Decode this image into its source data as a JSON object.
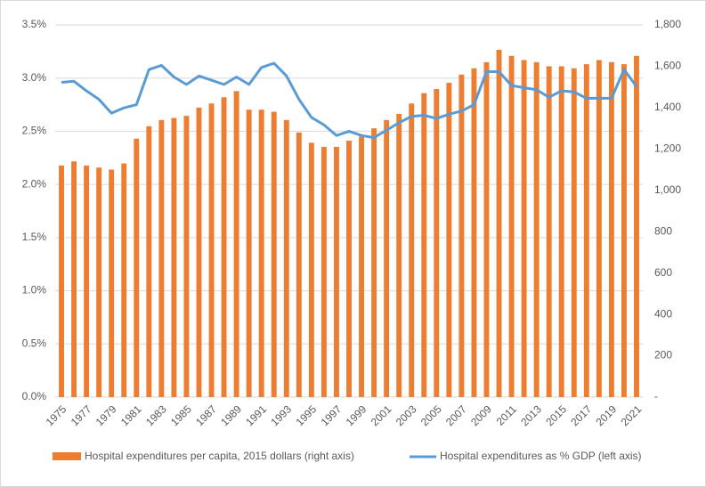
{
  "chart_data": {
    "type": "bar",
    "categories": [
      "1975",
      null,
      "1977",
      null,
      "1979",
      null,
      "1981",
      null,
      "1983",
      null,
      "1985",
      null,
      "1987",
      null,
      "1989",
      null,
      "1991",
      null,
      "1993",
      null,
      "1995",
      null,
      "1997",
      null,
      "1999",
      null,
      "2001",
      null,
      "2003",
      null,
      "2005",
      null,
      "2007",
      null,
      "2009",
      null,
      "2011",
      null,
      "2013",
      null,
      "2015",
      null,
      "2017",
      null,
      "2019",
      null,
      "2021"
    ],
    "series": [
      {
        "name": "Hospital expenditures per capita, 2015 dollars (right axis)",
        "type": "bar",
        "axis": "y2",
        "color": "#ed7d31",
        "values": [
          1120,
          1140,
          1120,
          1110,
          1100,
          1130,
          1250,
          1310,
          1340,
          1350,
          1360,
          1400,
          1420,
          1450,
          1480,
          1390,
          1390,
          1380,
          1340,
          1280,
          1230,
          1210,
          1210,
          1240,
          1260,
          1300,
          1340,
          1370,
          1420,
          1470,
          1490,
          1520,
          1560,
          1590,
          1620,
          1680,
          1650,
          1630,
          1620,
          1600,
          1600,
          1590,
          1610,
          1630,
          1620,
          1610,
          1650
        ]
      },
      {
        "name": "Hospital expenditures as % GDP (left axis)",
        "type": "line",
        "axis": "y",
        "color": "#5b9bd5",
        "values": [
          2.96,
          2.97,
          2.88,
          2.8,
          2.67,
          2.72,
          2.75,
          3.08,
          3.12,
          3.01,
          2.94,
          3.02,
          2.98,
          2.94,
          3.01,
          2.94,
          3.1,
          3.14,
          3.02,
          2.8,
          2.63,
          2.56,
          2.46,
          2.5,
          2.46,
          2.44,
          2.51,
          2.58,
          2.64,
          2.65,
          2.62,
          2.66,
          2.69,
          2.75,
          3.06,
          3.06,
          2.93,
          2.91,
          2.89,
          2.82,
          2.88,
          2.87,
          2.81,
          2.81,
          2.81,
          3.08,
          2.92
        ]
      }
    ],
    "ylim": [
      0,
      3.5
    ],
    "yticks": [
      {
        "value": 0,
        "label": "0.0%"
      },
      {
        "value": 0.5,
        "label": "0.5%"
      },
      {
        "value": 1,
        "label": "1.0%"
      },
      {
        "value": 1.5,
        "label": "1.5%"
      },
      {
        "value": 2,
        "label": "2.0%"
      },
      {
        "value": 2.5,
        "label": "2.5%"
      },
      {
        "value": 3,
        "label": "3.0%"
      },
      {
        "value": 3.5,
        "label": "3.5%"
      }
    ],
    "y2lim": [
      0,
      1800
    ],
    "y2ticks": [
      {
        "value": 0,
        "label": "-"
      },
      200,
      400,
      600,
      800,
      {
        "value": 1000,
        "label": "1,000"
      },
      {
        "value": 1200,
        "label": "1,200"
      },
      {
        "value": 1400,
        "label": "1,400"
      },
      {
        "value": 1600,
        "label": "1,600"
      },
      {
        "value": 1800,
        "label": "1,800"
      }
    ],
    "grid": true,
    "legend": "bottom"
  }
}
